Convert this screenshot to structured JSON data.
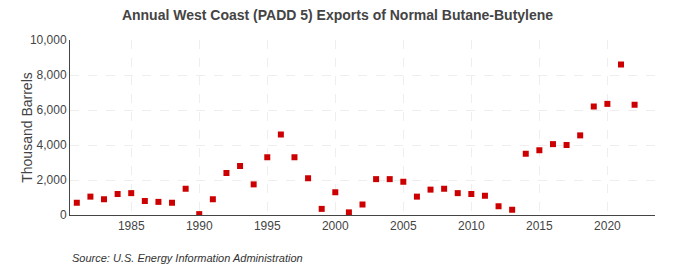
{
  "chart_data": {
    "type": "scatter",
    "title": "Annual West Coast (PADD 5) Exports of Normal Butane-Butylene",
    "ylabel": "Thousand Barrels",
    "annotations": [
      "Source: U.S. Energy Information Administration"
    ],
    "color": "#cc0000",
    "marker": "square",
    "grid": true,
    "xlim": [
      1980.5,
      2023.5
    ],
    "ylim": [
      0,
      10000
    ],
    "xticks": [
      1985,
      1990,
      1995,
      2000,
      2005,
      2010,
      2015,
      2020
    ],
    "yticks": [
      0,
      {
        "value": 2000,
        "label": "2,000"
      },
      {
        "value": 4000,
        "label": "4,000"
      },
      {
        "value": 6000,
        "label": "6,000"
      },
      {
        "value": 8000,
        "label": "8,000"
      },
      {
        "value": 10000,
        "label": "10,000"
      }
    ],
    "x": [
      1981,
      1982,
      1983,
      1984,
      1985,
      1986,
      1987,
      1988,
      1989,
      1990,
      1991,
      1992,
      1993,
      1994,
      1995,
      1996,
      1997,
      1998,
      1999,
      2000,
      2001,
      2002,
      2003,
      2004,
      2005,
      2006,
      2007,
      2008,
      2009,
      2010,
      2011,
      2012,
      2013,
      2014,
      2015,
      2016,
      2017,
      2018,
      2019,
      2020,
      2021,
      2022
    ],
    "values": [
      700,
      1050,
      900,
      1200,
      1250,
      800,
      750,
      700,
      1500,
      50,
      900,
      2400,
      2800,
      1750,
      3300,
      4600,
      3300,
      2100,
      350,
      1300,
      150,
      600,
      2050,
      2050,
      1900,
      1050,
      1450,
      1500,
      1250,
      1200,
      1100,
      500,
      300,
      3500,
      3700,
      4050,
      4000,
      4550,
      6200,
      6350,
      8600,
      6300
    ]
  }
}
